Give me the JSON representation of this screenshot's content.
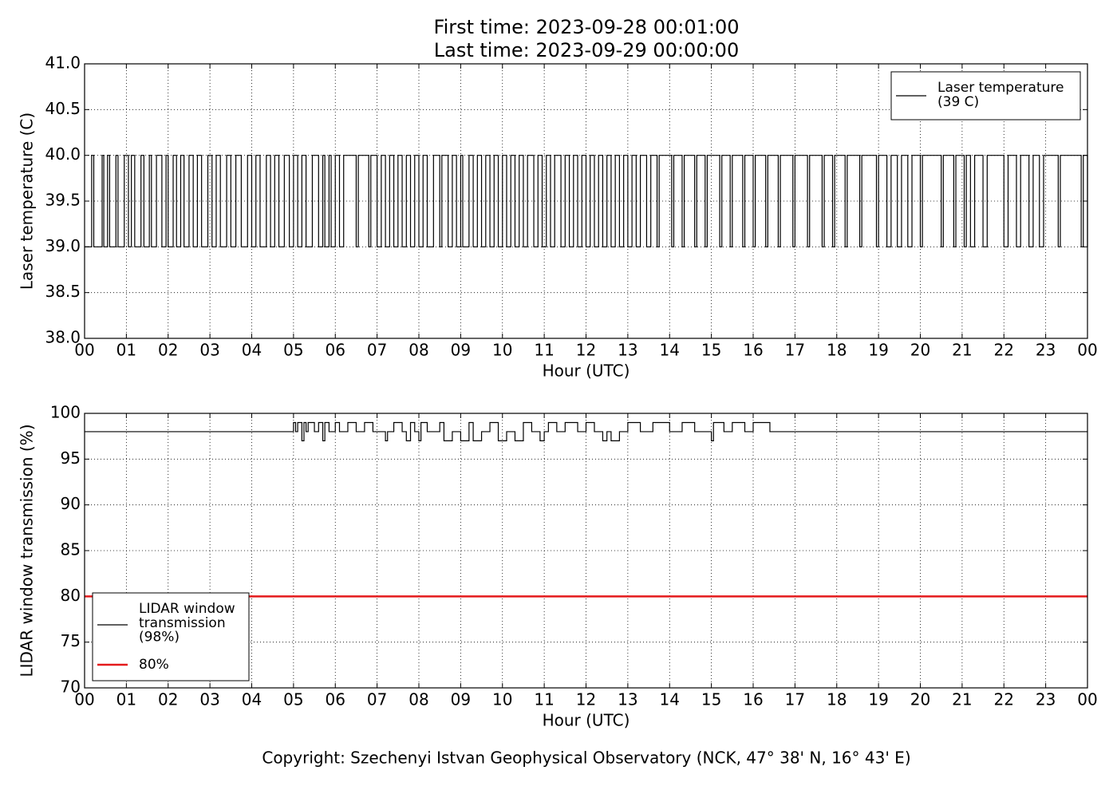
{
  "title": [
    "First time: 2023-09-28 00:01:00",
    "Last time: 2023-09-29 00:00:00"
  ],
  "footer": "Copyright: Szechenyi Istvan Geophysical Observatory (NCK, 47° 38' N, 16° 43' E)",
  "chart_data": [
    {
      "type": "line",
      "xlabel": "Hour (UTC)",
      "ylabel": "Laser temperature (C)",
      "xlim": [
        0,
        24
      ],
      "ylim": [
        38,
        41
      ],
      "grid": true,
      "legend": "upper right",
      "xticks": [
        {
          "value": 0,
          "label": "00"
        },
        {
          "value": 1,
          "label": "01"
        },
        {
          "value": 2,
          "label": "02"
        },
        {
          "value": 3,
          "label": "03"
        },
        {
          "value": 4,
          "label": "04"
        },
        {
          "value": 5,
          "label": "05"
        },
        {
          "value": 6,
          "label": "06"
        },
        {
          "value": 7,
          "label": "07"
        },
        {
          "value": 8,
          "label": "08"
        },
        {
          "value": 9,
          "label": "09"
        },
        {
          "value": 10,
          "label": "10"
        },
        {
          "value": 11,
          "label": "11"
        },
        {
          "value": 12,
          "label": "12"
        },
        {
          "value": 13,
          "label": "13"
        },
        {
          "value": 14,
          "label": "14"
        },
        {
          "value": 15,
          "label": "15"
        },
        {
          "value": 16,
          "label": "16"
        },
        {
          "value": 17,
          "label": "17"
        },
        {
          "value": 18,
          "label": "18"
        },
        {
          "value": 19,
          "label": "19"
        },
        {
          "value": 20,
          "label": "20"
        },
        {
          "value": 21,
          "label": "21"
        },
        {
          "value": 22,
          "label": "22"
        },
        {
          "value": 23,
          "label": "23"
        },
        {
          "value": 24,
          "label": "00"
        }
      ],
      "yticks": [
        {
          "value": 38,
          "label": "38.0"
        },
        38.5,
        {
          "value": 39,
          "label": "39.0"
        },
        39.5,
        {
          "value": 40,
          "label": "40.0"
        },
        40.5,
        {
          "value": 41,
          "label": "41.0"
        }
      ],
      "series": [
        {
          "name": "Laser temperature\n(39 C)",
          "color": "#000000",
          "width": 1.2,
          "drawstyle": "steps-post",
          "x": [
            0.0,
            0.17,
            0.22,
            0.42,
            0.46,
            0.55,
            0.6,
            0.75,
            0.8,
            0.95,
            1.05,
            1.12,
            1.2,
            1.35,
            1.42,
            1.55,
            1.6,
            1.72,
            1.85,
            1.95,
            2.0,
            2.12,
            2.2,
            2.3,
            2.38,
            2.5,
            2.6,
            2.7,
            2.8,
            2.95,
            3.05,
            3.15,
            3.25,
            3.4,
            3.5,
            3.62,
            3.75,
            3.9,
            4.0,
            4.1,
            4.2,
            4.35,
            4.45,
            4.55,
            4.65,
            4.78,
            4.9,
            5.0,
            5.1,
            5.2,
            5.3,
            5.45,
            5.6,
            5.7,
            5.75,
            5.85,
            5.9,
            6.0,
            6.1,
            6.2,
            6.5,
            6.55,
            6.8,
            6.85,
            7.0,
            7.1,
            7.2,
            7.3,
            7.4,
            7.5,
            7.6,
            7.7,
            7.8,
            7.9,
            8.0,
            8.1,
            8.2,
            8.35,
            8.5,
            8.55,
            8.7,
            8.8,
            8.9,
            9.0,
            9.05,
            9.2,
            9.3,
            9.4,
            9.5,
            9.6,
            9.7,
            9.8,
            9.9,
            10.0,
            10.1,
            10.2,
            10.3,
            10.4,
            10.5,
            10.6,
            10.75,
            10.85,
            10.95,
            11.05,
            11.15,
            11.25,
            11.4,
            11.5,
            11.6,
            11.7,
            11.8,
            11.9,
            12.0,
            12.1,
            12.2,
            12.3,
            12.4,
            12.5,
            12.6,
            12.7,
            12.8,
            12.9,
            13.0,
            13.1,
            13.2,
            13.3,
            13.45,
            13.55,
            13.7,
            13.75,
            14.05,
            14.1,
            14.3,
            14.35,
            14.6,
            14.65,
            14.85,
            14.9,
            15.2,
            15.25,
            15.45,
            15.5,
            15.75,
            15.8,
            16.0,
            16.05,
            16.3,
            16.35,
            16.6,
            16.65,
            16.95,
            17.0,
            17.3,
            17.35,
            17.65,
            17.7,
            17.9,
            17.95,
            18.2,
            18.25,
            18.55,
            18.6,
            18.95,
            19.0,
            19.2,
            19.3,
            19.45,
            19.55,
            19.7,
            19.8,
            20.0,
            20.05,
            20.5,
            20.55,
            20.8,
            20.85,
            21.05,
            21.1,
            21.2,
            21.3,
            21.5,
            21.6,
            22.0,
            22.1,
            22.3,
            22.4,
            22.6,
            22.7,
            22.85,
            22.95,
            23.3,
            23.35,
            23.85,
            23.9,
            24.0
          ],
          "values": [
            39,
            40,
            39,
            40,
            39,
            40,
            39,
            40,
            39,
            40,
            39,
            40,
            39,
            40,
            39,
            40,
            39,
            40,
            39,
            40,
            39,
            40,
            39,
            40,
            39,
            40,
            39,
            40,
            39,
            40,
            39,
            40,
            39,
            40,
            39,
            40,
            39,
            40,
            39,
            40,
            39,
            40,
            39,
            40,
            39,
            40,
            39,
            40,
            39,
            40,
            39,
            40,
            39,
            40,
            39,
            40,
            39,
            40,
            39,
            40,
            39,
            40,
            39,
            40,
            39,
            40,
            39,
            40,
            39,
            40,
            39,
            40,
            39,
            40,
            39,
            40,
            39,
            40,
            39,
            40,
            39,
            40,
            39,
            40,
            39,
            40,
            39,
            40,
            39,
            40,
            39,
            40,
            39,
            40,
            39,
            40,
            39,
            40,
            39,
            40,
            39,
            40,
            39,
            40,
            39,
            40,
            39,
            40,
            39,
            40,
            39,
            40,
            39,
            40,
            39,
            40,
            39,
            40,
            39,
            40,
            39,
            40,
            39,
            40,
            39,
            40,
            39,
            40,
            39,
            40,
            39,
            40,
            39,
            40,
            39,
            40,
            39,
            40,
            39,
            40,
            39,
            40,
            39,
            40,
            39,
            40,
            39,
            40,
            39,
            40,
            39,
            40,
            39,
            40,
            39,
            40,
            39,
            40,
            39,
            40,
            39,
            40,
            39,
            40,
            39,
            40,
            39,
            40,
            39,
            40,
            39,
            40,
            39,
            40,
            39,
            40,
            39,
            40,
            39,
            40,
            39,
            40,
            39,
            40,
            39,
            40,
            39,
            40,
            39,
            40,
            39,
            40,
            39,
            40,
            39
          ]
        }
      ]
    },
    {
      "type": "line",
      "xlabel": "Hour (UTC)",
      "ylabel": "LIDAR window transmission (%)",
      "xlim": [
        0,
        24
      ],
      "ylim": [
        70,
        100
      ],
      "grid": true,
      "legend": "lower left",
      "xticks": [
        {
          "value": 0,
          "label": "00"
        },
        {
          "value": 1,
          "label": "01"
        },
        {
          "value": 2,
          "label": "02"
        },
        {
          "value": 3,
          "label": "03"
        },
        {
          "value": 4,
          "label": "04"
        },
        {
          "value": 5,
          "label": "05"
        },
        {
          "value": 6,
          "label": "06"
        },
        {
          "value": 7,
          "label": "07"
        },
        {
          "value": 8,
          "label": "08"
        },
        {
          "value": 9,
          "label": "09"
        },
        {
          "value": 10,
          "label": "10"
        },
        {
          "value": 11,
          "label": "11"
        },
        {
          "value": 12,
          "label": "12"
        },
        {
          "value": 13,
          "label": "13"
        },
        {
          "value": 14,
          "label": "14"
        },
        {
          "value": 15,
          "label": "15"
        },
        {
          "value": 16,
          "label": "16"
        },
        {
          "value": 17,
          "label": "17"
        },
        {
          "value": 18,
          "label": "18"
        },
        {
          "value": 19,
          "label": "19"
        },
        {
          "value": 20,
          "label": "20"
        },
        {
          "value": 21,
          "label": "21"
        },
        {
          "value": 22,
          "label": "22"
        },
        {
          "value": 23,
          "label": "23"
        },
        {
          "value": 24,
          "label": "00"
        }
      ],
      "yticks": [
        70,
        75,
        80,
        85,
        90,
        95,
        100
      ],
      "series": [
        {
          "name": "LIDAR window\ntransmission\n(98%)",
          "color": "#000000",
          "width": 1.2,
          "drawstyle": "steps-post",
          "x": [
            0,
            5.0,
            5.05,
            5.1,
            5.2,
            5.25,
            5.3,
            5.35,
            5.5,
            5.6,
            5.7,
            5.75,
            5.85,
            6.0,
            6.1,
            6.3,
            6.5,
            6.7,
            6.9,
            7.2,
            7.25,
            7.4,
            7.6,
            7.7,
            7.8,
            7.9,
            8.0,
            8.05,
            8.2,
            8.5,
            8.6,
            8.8,
            9.0,
            9.2,
            9.3,
            9.5,
            9.7,
            9.9,
            10.1,
            10.3,
            10.5,
            10.7,
            10.9,
            11.0,
            11.1,
            11.3,
            11.5,
            11.8,
            12.0,
            12.2,
            12.4,
            12.5,
            12.6,
            12.8,
            13.0,
            13.3,
            13.6,
            14.0,
            14.3,
            14.6,
            15.0,
            15.05,
            15.3,
            15.5,
            15.8,
            16.0,
            16.4,
            24
          ],
          "values": [
            98,
            99,
            98,
            99,
            97,
            99,
            98,
            99,
            98,
            99,
            97,
            99,
            98,
            99,
            98,
            99,
            98,
            99,
            98,
            97,
            98,
            99,
            98,
            97,
            99,
            98,
            97,
            99,
            98,
            99,
            97,
            98,
            97,
            99,
            97,
            98,
            99,
            97,
            98,
            97,
            99,
            98,
            97,
            98,
            99,
            98,
            99,
            98,
            99,
            98,
            97,
            98,
            97,
            98,
            99,
            98,
            99,
            98,
            99,
            98,
            97,
            99,
            98,
            99,
            98,
            99,
            98,
            98
          ]
        },
        {
          "name": "80%",
          "color": "#e41a1c",
          "width": 2.5,
          "drawstyle": "default",
          "x": [
            0,
            24
          ],
          "values": [
            80,
            80
          ]
        }
      ]
    }
  ]
}
